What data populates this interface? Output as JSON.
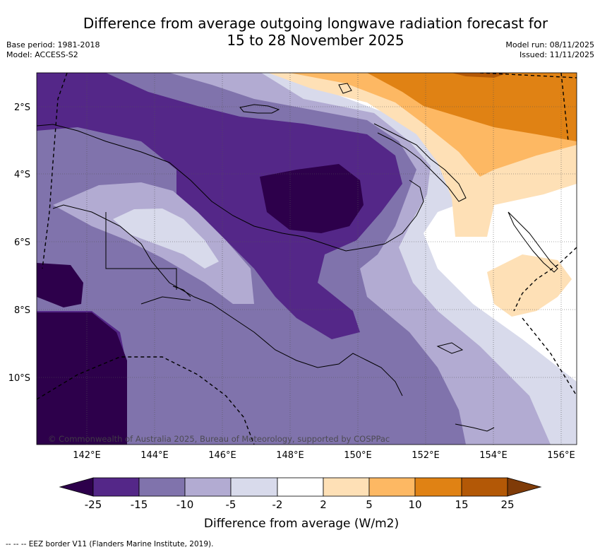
{
  "title": {
    "line1": "Difference from average outgoing longwave radiation forecast for",
    "line2": "15 to 28 November 2025"
  },
  "meta": {
    "base_period": "Base period: 1981-2018",
    "model": "Model: ACCESS-S2",
    "model_run": "Model run: 08/11/2025",
    "issued": "Issued: 11/11/2025"
  },
  "map": {
    "lat_labels": [
      "2°S",
      "4°S",
      "6°S",
      "8°S",
      "10°S"
    ],
    "lon_labels": [
      "142°E",
      "144°E",
      "146°E",
      "148°E",
      "150°E",
      "152°E",
      "154°E",
      "156°E"
    ],
    "copyright": "© Commonwealth of Australia 2025, Bureau of Meteorology, supported by COSPPac"
  },
  "colorbar": {
    "label": "Difference from average (W/m2)",
    "ticks": [
      "-25",
      "-15",
      "-10",
      "-5",
      "-2",
      "2",
      "5",
      "10",
      "15",
      "25"
    ],
    "colors": {
      "lt_neg25": "#2d004b",
      "neg25_neg15": "#542788",
      "neg15_neg10": "#8073ac",
      "neg10_neg5": "#b2abd2",
      "neg5_neg2": "#d8daeb",
      "neg2_2": "#ffffff",
      "2_5": "#fee0b6",
      "5_10": "#fdb863",
      "10_15": "#e08214",
      "15_25": "#b35806",
      "gt_25": "#7f3b08"
    }
  },
  "footer": "--  --  -- EEZ border V11 (Flanders Marine Institute, 2019)."
}
